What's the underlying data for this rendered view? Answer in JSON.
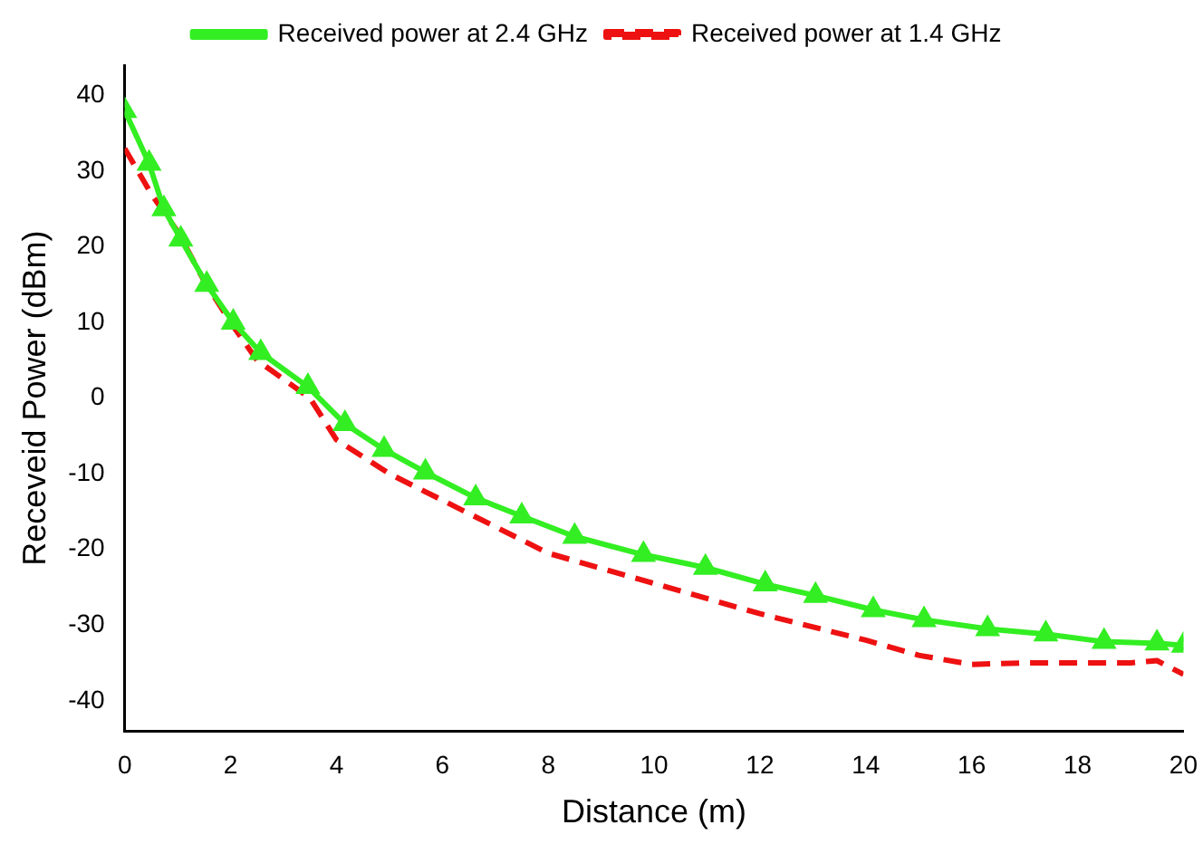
{
  "chart_data": {
    "type": "line",
    "xlabel": "Distance (m)",
    "ylabel": "Receveid Power (dBm)",
    "xlim": [
      0,
      20
    ],
    "xticks": [
      0,
      2,
      4,
      6,
      8,
      10,
      12,
      14,
      16,
      18,
      20
    ],
    "ylim": [
      -44,
      44
    ],
    "yticks": [
      -40,
      -30,
      -20,
      -10,
      0,
      10,
      20,
      30,
      40
    ],
    "grid": false,
    "legend": "top",
    "series": [
      {
        "name": "Received power at 2.4 GHz",
        "color": "#33ee22",
        "marker": "triangle",
        "line_style": "solid",
        "x": [
          0,
          0.46,
          0.74,
          1.06,
          1.55,
          2.05,
          2.57,
          3.46,
          4.16,
          4.9,
          5.68,
          6.63,
          7.5,
          8.5,
          9.8,
          10.97,
          12.1,
          13.05,
          14.14,
          15.1,
          16.3,
          17.4,
          18.5,
          19.5,
          20
        ],
        "values": [
          38,
          31,
          25,
          21,
          15,
          10,
          6,
          1.5,
          -3.4,
          -6.8,
          -9.8,
          -13.2,
          -15.6,
          -18.3,
          -20.7,
          -22.4,
          -24.6,
          -26.1,
          -28,
          -29.3,
          -30.5,
          -31.2,
          -32.2,
          -32.4,
          -32.7
        ]
      },
      {
        "name": "Received power at 1.4 GHz",
        "color": "#ee1111",
        "marker": "none",
        "line_style": "dashed",
        "x": [
          0,
          0.5,
          1,
          1.5,
          2,
          2.5,
          3.5,
          4,
          5,
          6,
          7,
          8,
          9,
          10,
          12,
          14,
          15,
          16,
          17,
          18,
          19,
          19.5,
          20
        ],
        "values": [
          33,
          27,
          22,
          15.5,
          10,
          5,
          0,
          -5.5,
          -10,
          -13.5,
          -17,
          -20.5,
          -22.5,
          -24.5,
          -28.5,
          -32,
          -34,
          -35.2,
          -35,
          -35,
          -35,
          -34.7,
          -36.5
        ]
      }
    ]
  }
}
